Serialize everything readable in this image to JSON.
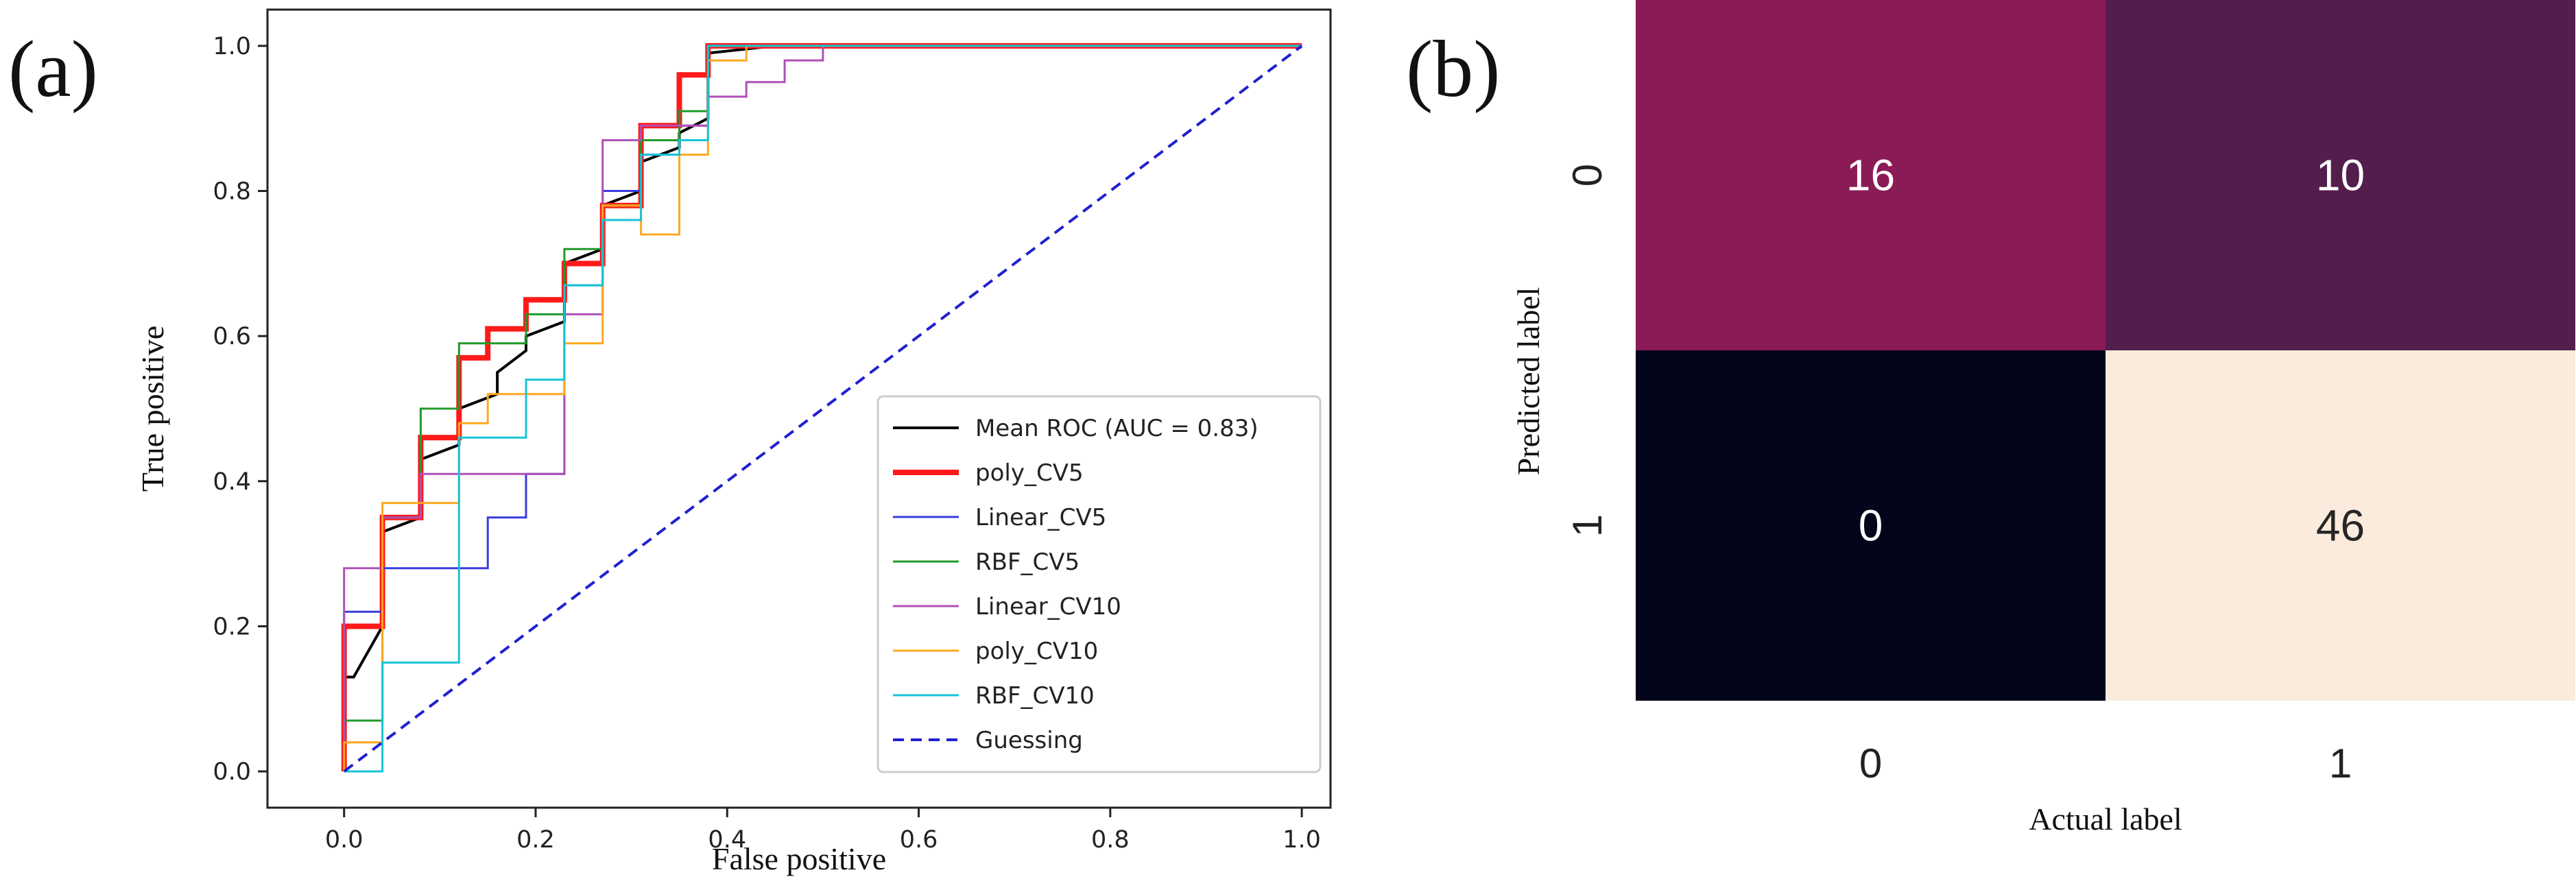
{
  "panels": {
    "a_label": "(a)",
    "b_label": "(b)"
  },
  "chart_data": [
    {
      "type": "line",
      "title": "",
      "xlabel": "False positive",
      "ylabel": "True positive",
      "xlim": [
        -0.08,
        1.03
      ],
      "ylim": [
        -0.05,
        1.05
      ],
      "xticks": [
        0.0,
        0.2,
        0.4,
        0.6,
        0.8,
        1.0
      ],
      "yticks": [
        0.0,
        0.2,
        0.4,
        0.6,
        0.8,
        1.0
      ],
      "xtick_labels": [
        "0.0",
        "0.2",
        "0.4",
        "0.6",
        "0.8",
        "1.0"
      ],
      "ytick_labels": [
        "0.0",
        "0.2",
        "0.4",
        "0.6",
        "0.8",
        "1.0"
      ],
      "grid": false,
      "legend_position": "lower-right",
      "series": [
        {
          "name": "Mean ROC (AUC = 0.83)",
          "color": "#000000",
          "width": 4,
          "dash": false,
          "x": [
            0.0,
            0.0,
            0.01,
            0.04,
            0.04,
            0.08,
            0.08,
            0.12,
            0.12,
            0.16,
            0.16,
            0.19,
            0.19,
            0.23,
            0.23,
            0.27,
            0.27,
            0.31,
            0.31,
            0.35,
            0.35,
            0.38,
            0.38,
            0.45,
            1.0
          ],
          "y": [
            0.0,
            0.13,
            0.13,
            0.2,
            0.33,
            0.35,
            0.43,
            0.45,
            0.5,
            0.52,
            0.55,
            0.58,
            0.6,
            0.62,
            0.7,
            0.72,
            0.78,
            0.8,
            0.84,
            0.86,
            0.88,
            0.9,
            0.99,
            1.0,
            1.0
          ]
        },
        {
          "name": "poly_CV5",
          "color": "#ff1a1a",
          "width": 8,
          "dash": false,
          "x": [
            0.0,
            0.0,
            0.04,
            0.04,
            0.08,
            0.08,
            0.12,
            0.12,
            0.15,
            0.15,
            0.19,
            0.19,
            0.23,
            0.23,
            0.27,
            0.27,
            0.31,
            0.31,
            0.35,
            0.35,
            0.38,
            0.38,
            1.0
          ],
          "y": [
            0.0,
            0.2,
            0.2,
            0.35,
            0.35,
            0.46,
            0.46,
            0.57,
            0.57,
            0.61,
            0.61,
            0.65,
            0.65,
            0.7,
            0.7,
            0.78,
            0.78,
            0.89,
            0.89,
            0.96,
            0.96,
            1.0,
            1.0
          ]
        },
        {
          "name": "Linear_CV5",
          "color": "#3b3bdc",
          "width": 3,
          "dash": false,
          "x": [
            0.0,
            0.0,
            0.04,
            0.04,
            0.08,
            0.08,
            0.15,
            0.15,
            0.19,
            0.19,
            0.23,
            0.23,
            0.27,
            0.27,
            0.31,
            0.31,
            0.35,
            0.35,
            0.38,
            0.38,
            1.0
          ],
          "y": [
            0.0,
            0.22,
            0.22,
            0.28,
            0.28,
            0.28,
            0.28,
            0.35,
            0.35,
            0.41,
            0.41,
            0.67,
            0.67,
            0.8,
            0.8,
            0.85,
            0.85,
            0.89,
            0.89,
            1.0,
            1.0
          ]
        },
        {
          "name": "RBF_CV5",
          "color": "#1f9a2a",
          "width": 3,
          "dash": false,
          "x": [
            0.0,
            0.0,
            0.04,
            0.04,
            0.08,
            0.08,
            0.12,
            0.12,
            0.19,
            0.19,
            0.23,
            0.23,
            0.27,
            0.27,
            0.31,
            0.31,
            0.35,
            0.35,
            0.38,
            0.38,
            1.0
          ],
          "y": [
            0.0,
            0.07,
            0.07,
            0.35,
            0.35,
            0.5,
            0.5,
            0.59,
            0.59,
            0.63,
            0.63,
            0.72,
            0.72,
            0.78,
            0.78,
            0.87,
            0.87,
            0.91,
            0.91,
            1.0,
            1.0
          ]
        },
        {
          "name": "Linear_CV10",
          "color": "#b050b8",
          "width": 3,
          "dash": false,
          "x": [
            0.0,
            0.0,
            0.04,
            0.04,
            0.08,
            0.08,
            0.19,
            0.19,
            0.23,
            0.23,
            0.27,
            0.27,
            0.31,
            0.31,
            0.38,
            0.38,
            0.42,
            0.42,
            0.46,
            0.46,
            0.5,
            0.5,
            1.0
          ],
          "y": [
            0.0,
            0.28,
            0.28,
            0.35,
            0.35,
            0.41,
            0.41,
            0.41,
            0.41,
            0.63,
            0.63,
            0.87,
            0.87,
            0.89,
            0.89,
            0.93,
            0.93,
            0.95,
            0.95,
            0.98,
            0.98,
            1.0,
            1.0
          ]
        },
        {
          "name": "poly_CV10",
          "color": "#ffa820",
          "width": 3,
          "dash": false,
          "x": [
            0.0,
            0.0,
            0.04,
            0.04,
            0.12,
            0.12,
            0.15,
            0.15,
            0.23,
            0.23,
            0.27,
            0.27,
            0.31,
            0.31,
            0.35,
            0.35,
            0.38,
            0.38,
            0.42,
            0.42,
            1.0
          ],
          "y": [
            0.0,
            0.04,
            0.04,
            0.37,
            0.37,
            0.48,
            0.48,
            0.52,
            0.52,
            0.59,
            0.59,
            0.78,
            0.78,
            0.74,
            0.74,
            0.85,
            0.85,
            0.98,
            0.98,
            1.0,
            1.0
          ]
        },
        {
          "name": "RBF_CV10",
          "color": "#17c4d6",
          "width": 3,
          "dash": false,
          "x": [
            0.0,
            0.04,
            0.04,
            0.12,
            0.12,
            0.19,
            0.19,
            0.23,
            0.23,
            0.27,
            0.27,
            0.31,
            0.31,
            0.35,
            0.35,
            0.38,
            0.38,
            1.0
          ],
          "y": [
            0.0,
            0.0,
            0.15,
            0.15,
            0.46,
            0.46,
            0.54,
            0.54,
            0.67,
            0.67,
            0.76,
            0.76,
            0.85,
            0.85,
            0.87,
            0.87,
            1.0,
            1.0
          ]
        },
        {
          "name": "Guessing",
          "color": "#2020d0",
          "width": 4,
          "dash": true,
          "x": [
            0.0,
            1.0
          ],
          "y": [
            0.0,
            1.0
          ]
        }
      ]
    },
    {
      "type": "heatmap",
      "title": "",
      "xlabel": "Actual label",
      "ylabel": "Predicted label",
      "x_categories": [
        "0",
        "1"
      ],
      "y_categories": [
        "0",
        "1"
      ],
      "values": [
        [
          16,
          10
        ],
        [
          0,
          46
        ]
      ],
      "colorscale": [
        "#03051a",
        "#4c1d4b",
        "#a11a5b",
        "#e83f3f",
        "#f69c73",
        "#faebdd"
      ],
      "vmin": 0,
      "vmax": 46
    }
  ]
}
